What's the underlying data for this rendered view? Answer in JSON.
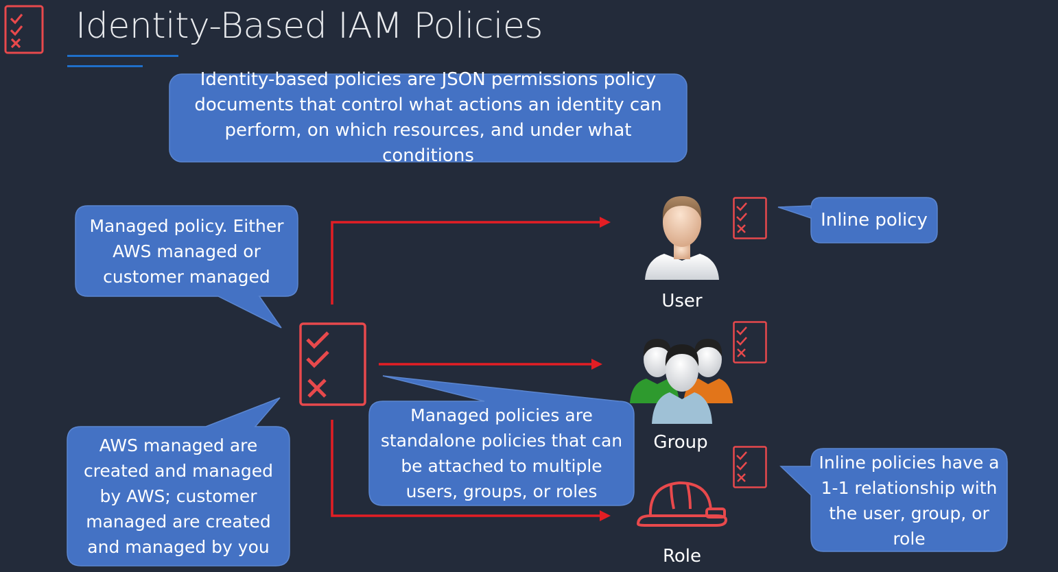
{
  "slide": {
    "title": "Identity-Based IAM Policies"
  },
  "callouts": {
    "definition": "Identity-based policies are JSON permissions policy documents that control what actions an identity can perform, on which resources, and under what conditions",
    "managed_policy": "Managed policy. Either AWS managed or customer managed",
    "aws_managed": "AWS managed are created and managed by AWS; customer managed are created and managed by you",
    "standalone": "Managed policies are standalone policies that can be attached to multiple users, groups, or roles",
    "inline_policy": "Inline policy",
    "inline_relationship": "Inline policies have a 1-1 relationship with the user, group, or role"
  },
  "identities": {
    "user": "User",
    "group": "Group",
    "role": "Role"
  },
  "colors": {
    "background": "#232b3a",
    "callout": "#4472c4",
    "callout_border": "#5b86d0",
    "arrow": "#e31e24",
    "policy_icon": "#e8494c"
  }
}
